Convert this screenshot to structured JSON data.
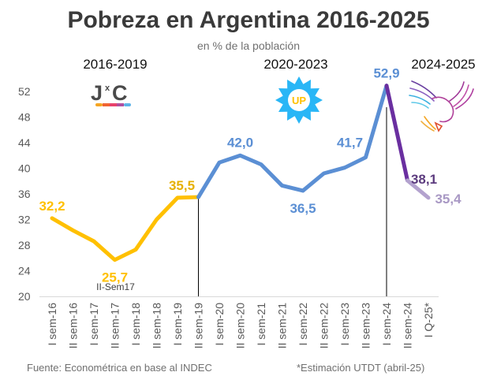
{
  "chart_data": {
    "type": "line",
    "title": "Pobreza en Argentina 2016-2025",
    "subtitle": "en % de la población",
    "xlabel": "",
    "ylabel": "",
    "ylim": [
      20,
      54
    ],
    "yticks": [
      20,
      24,
      28,
      32,
      36,
      40,
      44,
      48,
      52
    ],
    "grid": false,
    "categories": [
      "I sem-16",
      "II sem-16",
      "I sem-17",
      "II sem-17",
      "I sem-18",
      "II sem-18",
      "I sem-19",
      "II sem-19",
      "I sem-20",
      "II sem-20",
      "I sem-21",
      "II sem-21",
      "I sem-22",
      "II sem-22",
      "I sem-23",
      "II sem-23",
      "I sem-24",
      "II sem-24",
      "I Q-25*"
    ],
    "values": [
      32.2,
      30.3,
      28.6,
      25.7,
      27.3,
      32.0,
      35.4,
      35.5,
      40.9,
      42.0,
      40.6,
      37.3,
      36.5,
      39.2,
      40.1,
      41.7,
      52.9,
      38.1,
      35.4
    ],
    "series": [
      {
        "name": "2016-2019",
        "color": "#FFC000",
        "from": 0,
        "to": 7
      },
      {
        "name": "2020-2023",
        "color": "#5B8FD4",
        "from": 7,
        "to": 16
      },
      {
        "name": "2024",
        "color": "#6A2FA0",
        "from": 16,
        "to": 17
      },
      {
        "name": "2025 estimate",
        "color": "#B3A2CE",
        "from": 17,
        "to": 18
      }
    ],
    "data_labels": [
      {
        "index": 0,
        "text": "32,2",
        "color": "#FFC000"
      },
      {
        "index": 3,
        "text": "25,7",
        "color": "#FFC000"
      },
      {
        "index": 7,
        "text": "35,5",
        "color": "#E6B000"
      },
      {
        "index": 9,
        "text": "42,0",
        "color": "#5B8FD4"
      },
      {
        "index": 12,
        "text": "36,5",
        "color": "#5B8FD4"
      },
      {
        "index": 15,
        "text": "41,7",
        "color": "#5B8FD4"
      },
      {
        "index": 16,
        "text": "52,9",
        "color": "#5B8FD4"
      },
      {
        "index": 17,
        "text": "38,1",
        "color": "#5C3B7E"
      },
      {
        "index": 18,
        "text": "35,4",
        "color": "#A898C4"
      }
    ],
    "annotations": [
      {
        "index": 3,
        "text": "II-Sem17"
      }
    ],
    "period_labels": [
      {
        "text": "2016-2019",
        "logo": "jxc-logo"
      },
      {
        "text": "2020-2023",
        "logo": "up-logo"
      },
      {
        "text": "2024-2025",
        "logo": "bird-logo"
      }
    ],
    "separators_at": [
      7,
      16
    ]
  },
  "logos": {
    "jxc": {
      "letters": "J",
      "x": "x",
      "c": "C",
      "stripe_colors": [
        "#F5A623",
        "#F06433",
        "#E8416B",
        "#B04FA0",
        "#5DB3E8"
      ]
    },
    "up": {
      "text": "UP",
      "star_color": "#29B6F6",
      "text_color": "#FFC000"
    }
  },
  "footer": {
    "source": "Fuente: Econométrica en base al INDEC",
    "note": "*Estimación UTDT (abril-25)"
  }
}
